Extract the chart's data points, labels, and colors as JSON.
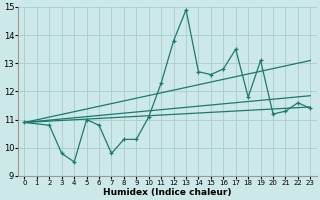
{
  "xlabel": "Humidex (Indice chaleur)",
  "ylabel": "",
  "xlim": [
    -0.5,
    23.5
  ],
  "ylim": [
    9,
    15
  ],
  "yticks": [
    9,
    10,
    11,
    12,
    13,
    14,
    15
  ],
  "xticks": [
    0,
    1,
    2,
    3,
    4,
    5,
    6,
    7,
    8,
    9,
    10,
    11,
    12,
    13,
    14,
    15,
    16,
    17,
    18,
    19,
    20,
    21,
    22,
    23
  ],
  "bg_color": "#cce8e8",
  "grid_color": "#aacccc",
  "line_color": "#1a7a6e",
  "main_series": {
    "x": [
      0,
      2,
      3,
      4,
      5,
      6,
      7,
      8,
      9,
      10,
      11,
      12,
      13,
      14,
      15,
      16,
      17,
      18,
      19,
      20,
      21,
      22,
      23
    ],
    "y": [
      10.9,
      10.8,
      9.8,
      9.5,
      11.0,
      10.8,
      9.8,
      10.3,
      10.3,
      11.1,
      12.3,
      13.8,
      14.9,
      12.7,
      12.6,
      12.8,
      13.5,
      11.8,
      13.1,
      11.2,
      11.3,
      11.6,
      11.4
    ]
  },
  "trend_lines": [
    {
      "x": [
        0,
        23
      ],
      "y": [
        10.9,
        13.1
      ]
    },
    {
      "x": [
        0,
        23
      ],
      "y": [
        10.9,
        11.85
      ]
    },
    {
      "x": [
        0,
        23
      ],
      "y": [
        10.9,
        11.45
      ]
    }
  ],
  "xlabel_fontsize": 6.5,
  "xlabel_fontweight": "bold",
  "ytick_fontsize": 6,
  "xtick_fontsize": 5
}
